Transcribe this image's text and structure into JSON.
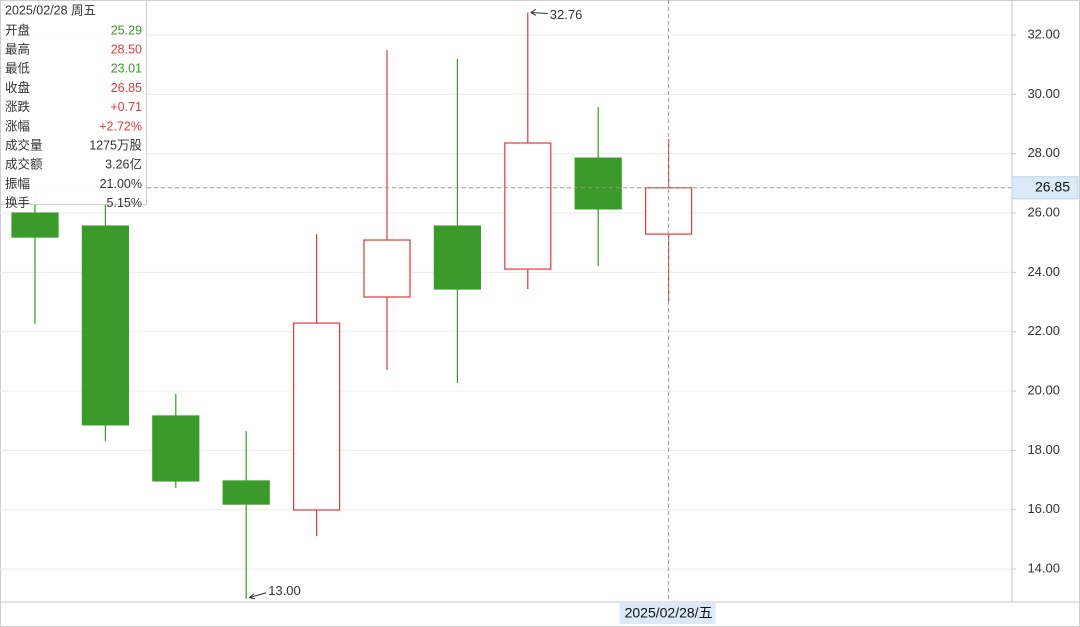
{
  "chart_data": {
    "type": "candlestick",
    "categories": [
      null,
      null,
      null,
      null,
      null,
      null,
      null,
      null,
      null,
      "2025/02/28/五"
    ],
    "open": [
      26.0,
      25.56,
      19.16,
      16.97,
      15.99,
      23.17,
      25.56,
      24.11,
      27.85,
      25.29
    ],
    "high": [
      26.6,
      26.4,
      19.9,
      18.65,
      25.29,
      31.49,
      31.19,
      32.76,
      29.57,
      28.5
    ],
    "low": [
      22.26,
      18.32,
      16.73,
      13.0,
      15.11,
      20.71,
      20.27,
      23.44,
      24.21,
      23.01
    ],
    "close": [
      25.19,
      18.86,
      16.97,
      16.19,
      22.29,
      25.09,
      23.44,
      28.36,
      26.14,
      26.85
    ],
    "high_labels": [
      null,
      null,
      null,
      null,
      null,
      null,
      null,
      "32.76",
      null,
      null
    ],
    "low_labels": [
      null,
      null,
      null,
      "13.00",
      null,
      null,
      null,
      null,
      null,
      null
    ],
    "up_color": "#e0393e",
    "down_color": "#3a9a2a",
    "ylim": [
      12.89,
      33.18
    ],
    "yticks": [
      {
        "value": 14,
        "label": "14.00"
      },
      {
        "value": 16,
        "label": "16.00"
      },
      {
        "value": 18,
        "label": "18.00"
      },
      {
        "value": 20,
        "label": "20.00"
      },
      {
        "value": 22,
        "label": "22.00"
      },
      {
        "value": 24,
        "label": "24.00"
      },
      {
        "value": 26,
        "label": "26.00"
      },
      {
        "value": 28,
        "label": "28.00"
      },
      {
        "value": 30,
        "label": "30.00"
      },
      {
        "value": 32,
        "label": "32.00"
      }
    ],
    "grid": true,
    "tooltip": {
      "title": "2025/02/28 周五",
      "rows": [
        {
          "label": "开盘",
          "value": "25.29",
          "color": "#3a9a2a"
        },
        {
          "label": "最高",
          "value": "28.50",
          "color": "#e0393e"
        },
        {
          "label": "最低",
          "value": "23.01",
          "color": "#3a9a2a"
        },
        {
          "label": "收盘",
          "value": "26.85",
          "color": "#e0393e"
        },
        {
          "label": "涨跌",
          "value": "+0.71",
          "color": "#e0393e"
        },
        {
          "label": "涨幅",
          "value": "+2.72%",
          "color": "#e0393e"
        },
        {
          "label": "成交量",
          "value": "1275万股",
          "color": "#333333"
        },
        {
          "label": "成交额",
          "value": "3.26亿",
          "color": "#333333"
        },
        {
          "label": "振幅",
          "value": "21.00%",
          "color": "#333333"
        },
        {
          "label": "换手",
          "value": "5.15%",
          "color": "#333333"
        }
      ]
    }
  }
}
